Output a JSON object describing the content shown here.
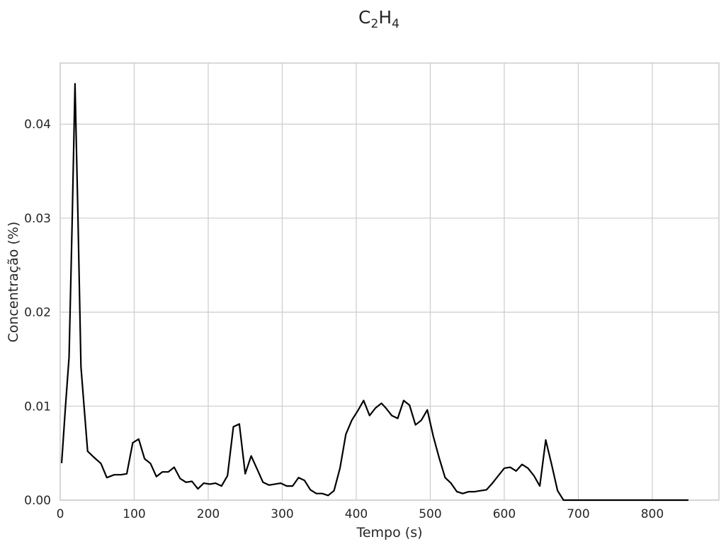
{
  "chart_data": {
    "type": "line",
    "title": {
      "base": "C",
      "sub1": "2",
      "mid": "H",
      "sub2": "4"
    },
    "xlabel": "Tempo (s)",
    "ylabel": "Concentração (%)",
    "xlim": [
      0,
      890
    ],
    "ylim": [
      0,
      0.0465
    ],
    "xticks": [
      0,
      100,
      200,
      300,
      400,
      500,
      600,
      700,
      800
    ],
    "xtick_labels": [
      "0",
      "100",
      "200",
      "300",
      "400",
      "500",
      "600",
      "700",
      "800"
    ],
    "yticks": [
      0,
      0.01,
      0.02,
      0.03,
      0.04
    ],
    "ytick_labels": [
      "0.00",
      "0.01",
      "0.02",
      "0.03",
      "0.04"
    ],
    "grid": true,
    "line_color": "#000000",
    "grid_color": "#cccccc",
    "series": [
      {
        "x": [
          2,
          7,
          12,
          16,
          20,
          24,
          28,
          33,
          37,
          45,
          55,
          63,
          73,
          82,
          90,
          98,
          106,
          114,
          122,
          130,
          138,
          146,
          154,
          162,
          170,
          178,
          186,
          194,
          202,
          210,
          218,
          226,
          234,
          242,
          250,
          258,
          266,
          274,
          282,
          290,
          298,
          306,
          314,
          322,
          330,
          338,
          346,
          354,
          362,
          370,
          378,
          386,
          394,
          402,
          410,
          418,
          426,
          434,
          440,
          448,
          456,
          464,
          472,
          480,
          488,
          496,
          504,
          512,
          520,
          528,
          536,
          544,
          552,
          560,
          568,
          576,
          584,
          592,
          600,
          608,
          616,
          624,
          632,
          640,
          648,
          656,
          664,
          672,
          680,
          688,
          696,
          704,
          712,
          720,
          728,
          734,
          740,
          750,
          760,
          770,
          780,
          790,
          800,
          810,
          820,
          830,
          840,
          848
        ],
        "y": [
          0.004,
          0.0098,
          0.0152,
          0.029,
          0.0443,
          0.03,
          0.0142,
          0.0092,
          0.0052,
          0.0046,
          0.0039,
          0.0024,
          0.0027,
          0.0027,
          0.0028,
          0.0061,
          0.0065,
          0.0044,
          0.0039,
          0.0025,
          0.003,
          0.003,
          0.0035,
          0.0023,
          0.0019,
          0.002,
          0.0012,
          0.0018,
          0.0017,
          0.0018,
          0.0015,
          0.0026,
          0.0078,
          0.0081,
          0.0028,
          0.0047,
          0.0033,
          0.0019,
          0.0016,
          0.0017,
          0.0018,
          0.0015,
          0.0015,
          0.0024,
          0.0021,
          0.0011,
          0.0007,
          0.0007,
          0.0005,
          0.001,
          0.0034,
          0.007,
          0.0085,
          0.0095,
          0.0106,
          0.009,
          0.0098,
          0.0103,
          0.0098,
          0.009,
          0.0087,
          0.0106,
          0.0101,
          0.008,
          0.0085,
          0.0096,
          0.0068,
          0.0045,
          0.0024,
          0.0018,
          0.0009,
          0.0007,
          0.0009,
          0.0009,
          0.001,
          0.0011,
          0.0018,
          0.0026,
          0.0034,
          0.0035,
          0.0031,
          0.0038,
          0.0034,
          0.0026,
          0.0015,
          0.0064,
          0.0038,
          0.001,
          0.0,
          0.0,
          0.0,
          0.0,
          0.0,
          0.0,
          0.0,
          0.0,
          0.0,
          0.0,
          0.0,
          0.0,
          0.0,
          0.0,
          0.0,
          0.0,
          0.0,
          0.0,
          0.0,
          0.0
        ]
      }
    ]
  }
}
